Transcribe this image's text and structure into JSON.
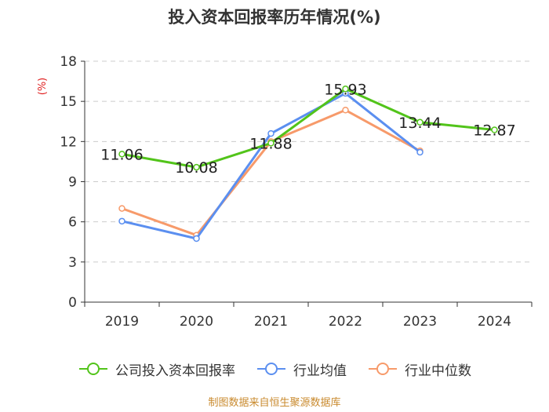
{
  "title": "投入资本回报率历年情况(%)",
  "source": "制图数据来自恒生聚源数据库",
  "chart_data": {
    "type": "line",
    "title": "投入资本回报率历年情况(%)",
    "ylabel": "(%)",
    "xlabel": "",
    "ylim": [
      0,
      18
    ],
    "yticks": [
      0,
      3,
      6,
      9,
      12,
      15,
      18
    ],
    "categories": [
      "2019",
      "2020",
      "2021",
      "2022",
      "2023",
      "2024"
    ],
    "grid": true,
    "legend_position": "bottom",
    "series": [
      {
        "name": "公司投入资本回报率",
        "color": "#52c41a",
        "values": [
          11.06,
          10.08,
          11.88,
          15.93,
          13.44,
          12.87
        ],
        "labels": [
          "11.06",
          "10.08",
          "11.88",
          "15.93",
          "13.44",
          "12.87"
        ]
      },
      {
        "name": "行业均值",
        "color": "#5b8ff0",
        "values": [
          6.05,
          4.75,
          12.6,
          15.6,
          11.2,
          null
        ]
      },
      {
        "name": "行业中位数",
        "color": "#f79a6a",
        "values": [
          7.0,
          5.0,
          12.0,
          14.35,
          11.3,
          null
        ]
      }
    ]
  }
}
